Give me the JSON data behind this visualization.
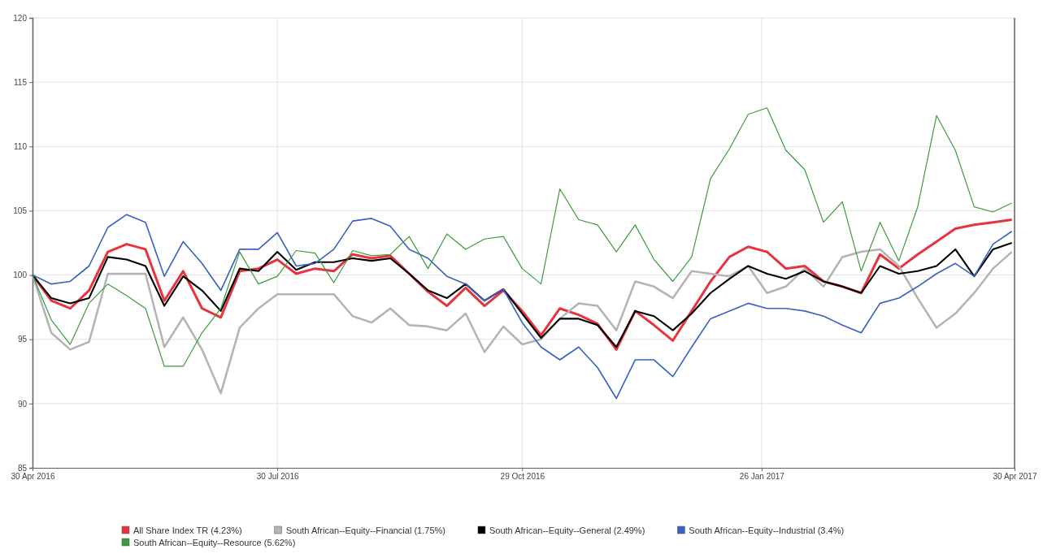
{
  "chart_data": {
    "type": "line",
    "x": [
      "2016-04-30",
      "2016-05-07",
      "2016-05-14",
      "2016-05-21",
      "2016-05-28",
      "2016-06-04",
      "2016-06-11",
      "2016-06-18",
      "2016-06-25",
      "2016-07-02",
      "2016-07-09",
      "2016-07-16",
      "2016-07-23",
      "2016-07-30",
      "2016-08-06",
      "2016-08-13",
      "2016-08-20",
      "2016-08-27",
      "2016-09-03",
      "2016-09-10",
      "2016-09-17",
      "2016-09-24",
      "2016-10-01",
      "2016-10-08",
      "2016-10-15",
      "2016-10-22",
      "2016-10-29",
      "2016-11-05",
      "2016-11-12",
      "2016-11-19",
      "2016-11-26",
      "2016-12-03",
      "2016-12-10",
      "2016-12-17",
      "2016-12-24",
      "2016-12-31",
      "2017-01-07",
      "2017-01-14",
      "2017-01-21",
      "2017-01-28",
      "2017-02-04",
      "2017-02-11",
      "2017-02-18",
      "2017-02-25",
      "2017-03-04",
      "2017-03-11",
      "2017-03-18",
      "2017-03-25",
      "2017-04-01",
      "2017-04-08",
      "2017-04-15",
      "2017-04-22",
      "2017-04-29"
    ],
    "series": [
      {
        "name": "All Share Index TR (4.23%)",
        "color": "#e8323c",
        "values": [
          100,
          98,
          97.4,
          98.8,
          101.8,
          102.4,
          102,
          98,
          100.3,
          97.4,
          96.7,
          100.3,
          100.5,
          101.2,
          100.1,
          100.5,
          100.3,
          101.6,
          101.3,
          101.5,
          100.1,
          98.7,
          97.6,
          99,
          97.6,
          98.8,
          97.2,
          95.3,
          97.4,
          96.9,
          96.2,
          94.2,
          97.2,
          96.1,
          94.9,
          97.2,
          99.5,
          101.4,
          102.2,
          101.8,
          100.5,
          100.7,
          99.5,
          99.1,
          98.6,
          101.6,
          100.5,
          101.6,
          102.6,
          103.6,
          103.9,
          104.1,
          104.3
        ]
      },
      {
        "name": "South African--Equity--Financial (1.75%)",
        "color": "#b4b4b4",
        "values": [
          100,
          95.5,
          94.2,
          94.8,
          100.1,
          100.1,
          100.1,
          94.4,
          96.7,
          94.2,
          90.8,
          95.9,
          97.4,
          98.5,
          98.5,
          98.5,
          98.5,
          96.8,
          96.3,
          97.4,
          96.1,
          96,
          95.7,
          97,
          94,
          96,
          94.6,
          95,
          96.6,
          97.8,
          97.6,
          95.7,
          99.5,
          99.1,
          98.2,
          100.3,
          100.1,
          99.9,
          100.7,
          98.6,
          99.1,
          100.5,
          99.1,
          101.4,
          101.8,
          102,
          100.7,
          98.2,
          95.9,
          97,
          98.6,
          100.5,
          101.8
        ]
      },
      {
        "name": "South African--Equity--General (2.49%)",
        "color": "#000000",
        "values": [
          100,
          98.2,
          97.8,
          98.2,
          101.4,
          101.2,
          100.7,
          97.6,
          99.9,
          98.8,
          97.2,
          100.5,
          100.3,
          101.8,
          100.4,
          101,
          101,
          101.3,
          101.1,
          101.3,
          100.1,
          98.8,
          98.2,
          99.3,
          98,
          98.9,
          97,
          95.1,
          96.6,
          96.6,
          96.1,
          94.4,
          97.2,
          96.8,
          95.7,
          97,
          98.6,
          99.7,
          100.7,
          100.1,
          99.7,
          100.3,
          99.5,
          99.1,
          98.6,
          100.7,
          100.1,
          100.3,
          100.7,
          102,
          99.9,
          102,
          102.5
        ]
      },
      {
        "name": "South African--Equity--Industrial (3.4%)",
        "color": "#3a62c4",
        "values": [
          100,
          99.3,
          99.5,
          100.7,
          103.7,
          104.7,
          104.1,
          99.9,
          102.6,
          100.9,
          98.8,
          102,
          102,
          103.3,
          100.7,
          100.9,
          102,
          104.2,
          104.4,
          103.8,
          102,
          101.3,
          99.9,
          99.3,
          98,
          98.9,
          96.3,
          94.4,
          93.4,
          94.4,
          92.8,
          90.4,
          93.4,
          93.4,
          92.1,
          94.4,
          96.6,
          97.2,
          97.8,
          97.4,
          97.4,
          97.2,
          96.8,
          96.1,
          95.5,
          97.8,
          98.2,
          99.1,
          100.1,
          100.9,
          99.9,
          102.4,
          103.4
        ]
      },
      {
        "name": "South African--Equity--Resource (5.62%)",
        "color": "#3c9c3c",
        "values": [
          100,
          96.5,
          94.6,
          97.8,
          99.3,
          98.4,
          97.4,
          92.9,
          92.9,
          95.5,
          97.4,
          101.8,
          99.3,
          99.9,
          101.9,
          101.7,
          99.4,
          101.9,
          101.5,
          101.6,
          103,
          100.5,
          103.2,
          102,
          102.8,
          103,
          100.5,
          99.3,
          106.7,
          104.3,
          103.9,
          101.8,
          103.9,
          101.2,
          99.5,
          101.4,
          107.5,
          109.8,
          112.5,
          113,
          109.7,
          108.2,
          104.1,
          105.7,
          100.3,
          104.1,
          101.1,
          105.3,
          112.4,
          109.7,
          105.3,
          104.9,
          105.6
        ]
      }
    ],
    "xlim": [
      "2016-04-30",
      "2017-04-30"
    ],
    "xticks": [
      {
        "value": "2016-04-30",
        "label": "30 Apr 2016"
      },
      {
        "value": "2016-07-30",
        "label": "30 Jul 2016"
      },
      {
        "value": "2016-10-29",
        "label": "29 Oct 2016"
      },
      {
        "value": "2017-01-26",
        "label": "26 Jan 2017"
      },
      {
        "value": "2017-04-30",
        "label": "30 Apr 2017"
      }
    ],
    "ylim": [
      85,
      120
    ],
    "yticks": [
      85,
      90,
      95,
      100,
      105,
      110,
      115,
      120
    ],
    "grid": true,
    "legend": "bottom",
    "marker": "none",
    "line_style": "solid"
  }
}
